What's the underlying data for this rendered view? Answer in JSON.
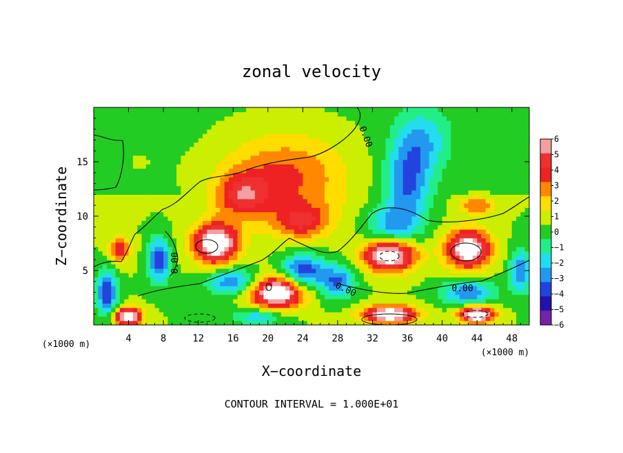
{
  "chart_data": {
    "type": "heatmap",
    "title": "zonal velocity",
    "xlabel": "X−coordinate",
    "ylabel": "Z−coordinate",
    "x_unit_label": "(×1000 m)",
    "y_unit_label": "(×1000 m)",
    "xlim": [
      0,
      50
    ],
    "ylim": [
      0,
      20
    ],
    "x_ticks": [
      4,
      8,
      12,
      16,
      20,
      24,
      28,
      32,
      36,
      40,
      44,
      48
    ],
    "y_ticks": [
      5,
      10,
      15
    ],
    "colorbar": {
      "levels": [
        6,
        5,
        4,
        3,
        2,
        1,
        0,
        -1,
        -2,
        -3,
        -4,
        -5,
        -6
      ],
      "colors": [
        "#f4a0a0",
        "#ee3030",
        "#ee2222",
        "#ff8800",
        "#ffdd00",
        "#ccee00",
        "#22cc22",
        "#22ee88",
        "#22ddee",
        "#2299ee",
        "#2244dd",
        "#2211aa",
        "#7722aa"
      ]
    },
    "contour_label": "0.00",
    "annotation": "CONTOUR INTERVAL = 1.000E+01",
    "field_features": [
      {
        "x": 22,
        "z": 13.5,
        "value": 3.5,
        "sx": 7,
        "sz": 4
      },
      {
        "x": 17,
        "z": 12,
        "value": 3.5,
        "sx": 3,
        "sz": 2
      },
      {
        "x": 24,
        "z": 9.5,
        "value": 3.5,
        "sx": 3,
        "sz": 1.5
      },
      {
        "x": 36,
        "z": 13,
        "value": -4,
        "sx": 2.5,
        "sz": 4
      },
      {
        "x": 34,
        "z": 9,
        "value": -3,
        "sx": 3,
        "sz": 2
      },
      {
        "x": 38,
        "z": 17,
        "value": -2.5,
        "sx": 3,
        "sz": 3
      },
      {
        "x": 14,
        "z": 7.5,
        "value": 8,
        "sx": 2.5,
        "sz": 1.8
      },
      {
        "x": 34,
        "z": 6.5,
        "value": 8,
        "sx": 3,
        "sz": 1.5
      },
      {
        "x": 43,
        "z": 7,
        "value": 8,
        "sx": 2.5,
        "sz": 1.7
      },
      {
        "x": 21,
        "z": 3,
        "value": 8,
        "sx": 3,
        "sz": 1.5
      },
      {
        "x": 7.5,
        "z": 6,
        "value": -5,
        "sx": 1.2,
        "sz": 2
      },
      {
        "x": 1.5,
        "z": 3,
        "value": -5,
        "sx": 1.2,
        "sz": 2
      },
      {
        "x": 24,
        "z": 5,
        "value": -5,
        "sx": 2.5,
        "sz": 1.5
      },
      {
        "x": 28,
        "z": 4,
        "value": -4,
        "sx": 2,
        "sz": 1.5
      },
      {
        "x": 16,
        "z": 4,
        "value": -4,
        "sx": 3,
        "sz": 1.2
      },
      {
        "x": 43,
        "z": 3,
        "value": -4,
        "sx": 3,
        "sz": 1.2
      },
      {
        "x": 49,
        "z": 5,
        "value": -4,
        "sx": 1.2,
        "sz": 2
      },
      {
        "x": 34,
        "z": 1,
        "value": 8,
        "sx": 3,
        "sz": 0.8
      },
      {
        "x": 44,
        "z": 1,
        "value": 8,
        "sx": 2,
        "sz": 0.8
      },
      {
        "x": 4,
        "z": 0.8,
        "value": 8,
        "sx": 1.5,
        "sz": 0.8
      },
      {
        "x": 19,
        "z": 0.8,
        "value": -3,
        "sx": 3,
        "sz": 0.8
      },
      {
        "x": 44,
        "z": 11,
        "value": 3,
        "sx": 2,
        "sz": 0.8
      },
      {
        "x": 3,
        "z": 7,
        "value": 4,
        "sx": 1.2,
        "sz": 1.2
      },
      {
        "x": 5,
        "z": 15,
        "value": 0.2,
        "sx": 4,
        "sz": 3
      }
    ]
  }
}
